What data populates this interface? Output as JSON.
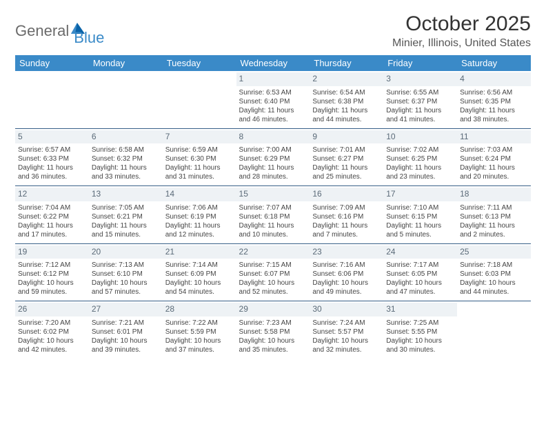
{
  "logo": {
    "part1": "General",
    "part2": "Blue"
  },
  "title": "October 2025",
  "location": "Minier, Illinois, United States",
  "colors": {
    "accent": "#3a8ac8",
    "rule": "#355e87",
    "daynum_bg": "#eef2f5",
    "daynum_fg": "#5a6a78"
  },
  "days_of_week": [
    "Sunday",
    "Monday",
    "Tuesday",
    "Wednesday",
    "Thursday",
    "Friday",
    "Saturday"
  ],
  "weeks": [
    [
      null,
      null,
      null,
      {
        "n": "1",
        "sr": "Sunrise: 6:53 AM",
        "ss": "Sunset: 6:40 PM",
        "d1": "Daylight: 11 hours",
        "d2": "and 46 minutes."
      },
      {
        "n": "2",
        "sr": "Sunrise: 6:54 AM",
        "ss": "Sunset: 6:38 PM",
        "d1": "Daylight: 11 hours",
        "d2": "and 44 minutes."
      },
      {
        "n": "3",
        "sr": "Sunrise: 6:55 AM",
        "ss": "Sunset: 6:37 PM",
        "d1": "Daylight: 11 hours",
        "d2": "and 41 minutes."
      },
      {
        "n": "4",
        "sr": "Sunrise: 6:56 AM",
        "ss": "Sunset: 6:35 PM",
        "d1": "Daylight: 11 hours",
        "d2": "and 38 minutes."
      }
    ],
    [
      {
        "n": "5",
        "sr": "Sunrise: 6:57 AM",
        "ss": "Sunset: 6:33 PM",
        "d1": "Daylight: 11 hours",
        "d2": "and 36 minutes."
      },
      {
        "n": "6",
        "sr": "Sunrise: 6:58 AM",
        "ss": "Sunset: 6:32 PM",
        "d1": "Daylight: 11 hours",
        "d2": "and 33 minutes."
      },
      {
        "n": "7",
        "sr": "Sunrise: 6:59 AM",
        "ss": "Sunset: 6:30 PM",
        "d1": "Daylight: 11 hours",
        "d2": "and 31 minutes."
      },
      {
        "n": "8",
        "sr": "Sunrise: 7:00 AM",
        "ss": "Sunset: 6:29 PM",
        "d1": "Daylight: 11 hours",
        "d2": "and 28 minutes."
      },
      {
        "n": "9",
        "sr": "Sunrise: 7:01 AM",
        "ss": "Sunset: 6:27 PM",
        "d1": "Daylight: 11 hours",
        "d2": "and 25 minutes."
      },
      {
        "n": "10",
        "sr": "Sunrise: 7:02 AM",
        "ss": "Sunset: 6:25 PM",
        "d1": "Daylight: 11 hours",
        "d2": "and 23 minutes."
      },
      {
        "n": "11",
        "sr": "Sunrise: 7:03 AM",
        "ss": "Sunset: 6:24 PM",
        "d1": "Daylight: 11 hours",
        "d2": "and 20 minutes."
      }
    ],
    [
      {
        "n": "12",
        "sr": "Sunrise: 7:04 AM",
        "ss": "Sunset: 6:22 PM",
        "d1": "Daylight: 11 hours",
        "d2": "and 17 minutes."
      },
      {
        "n": "13",
        "sr": "Sunrise: 7:05 AM",
        "ss": "Sunset: 6:21 PM",
        "d1": "Daylight: 11 hours",
        "d2": "and 15 minutes."
      },
      {
        "n": "14",
        "sr": "Sunrise: 7:06 AM",
        "ss": "Sunset: 6:19 PM",
        "d1": "Daylight: 11 hours",
        "d2": "and 12 minutes."
      },
      {
        "n": "15",
        "sr": "Sunrise: 7:07 AM",
        "ss": "Sunset: 6:18 PM",
        "d1": "Daylight: 11 hours",
        "d2": "and 10 minutes."
      },
      {
        "n": "16",
        "sr": "Sunrise: 7:09 AM",
        "ss": "Sunset: 6:16 PM",
        "d1": "Daylight: 11 hours",
        "d2": "and 7 minutes."
      },
      {
        "n": "17",
        "sr": "Sunrise: 7:10 AM",
        "ss": "Sunset: 6:15 PM",
        "d1": "Daylight: 11 hours",
        "d2": "and 5 minutes."
      },
      {
        "n": "18",
        "sr": "Sunrise: 7:11 AM",
        "ss": "Sunset: 6:13 PM",
        "d1": "Daylight: 11 hours",
        "d2": "and 2 minutes."
      }
    ],
    [
      {
        "n": "19",
        "sr": "Sunrise: 7:12 AM",
        "ss": "Sunset: 6:12 PM",
        "d1": "Daylight: 10 hours",
        "d2": "and 59 minutes."
      },
      {
        "n": "20",
        "sr": "Sunrise: 7:13 AM",
        "ss": "Sunset: 6:10 PM",
        "d1": "Daylight: 10 hours",
        "d2": "and 57 minutes."
      },
      {
        "n": "21",
        "sr": "Sunrise: 7:14 AM",
        "ss": "Sunset: 6:09 PM",
        "d1": "Daylight: 10 hours",
        "d2": "and 54 minutes."
      },
      {
        "n": "22",
        "sr": "Sunrise: 7:15 AM",
        "ss": "Sunset: 6:07 PM",
        "d1": "Daylight: 10 hours",
        "d2": "and 52 minutes."
      },
      {
        "n": "23",
        "sr": "Sunrise: 7:16 AM",
        "ss": "Sunset: 6:06 PM",
        "d1": "Daylight: 10 hours",
        "d2": "and 49 minutes."
      },
      {
        "n": "24",
        "sr": "Sunrise: 7:17 AM",
        "ss": "Sunset: 6:05 PM",
        "d1": "Daylight: 10 hours",
        "d2": "and 47 minutes."
      },
      {
        "n": "25",
        "sr": "Sunrise: 7:18 AM",
        "ss": "Sunset: 6:03 PM",
        "d1": "Daylight: 10 hours",
        "d2": "and 44 minutes."
      }
    ],
    [
      {
        "n": "26",
        "sr": "Sunrise: 7:20 AM",
        "ss": "Sunset: 6:02 PM",
        "d1": "Daylight: 10 hours",
        "d2": "and 42 minutes."
      },
      {
        "n": "27",
        "sr": "Sunrise: 7:21 AM",
        "ss": "Sunset: 6:01 PM",
        "d1": "Daylight: 10 hours",
        "d2": "and 39 minutes."
      },
      {
        "n": "28",
        "sr": "Sunrise: 7:22 AM",
        "ss": "Sunset: 5:59 PM",
        "d1": "Daylight: 10 hours",
        "d2": "and 37 minutes."
      },
      {
        "n": "29",
        "sr": "Sunrise: 7:23 AM",
        "ss": "Sunset: 5:58 PM",
        "d1": "Daylight: 10 hours",
        "d2": "and 35 minutes."
      },
      {
        "n": "30",
        "sr": "Sunrise: 7:24 AM",
        "ss": "Sunset: 5:57 PM",
        "d1": "Daylight: 10 hours",
        "d2": "and 32 minutes."
      },
      {
        "n": "31",
        "sr": "Sunrise: 7:25 AM",
        "ss": "Sunset: 5:55 PM",
        "d1": "Daylight: 10 hours",
        "d2": "and 30 minutes."
      },
      null
    ]
  ]
}
